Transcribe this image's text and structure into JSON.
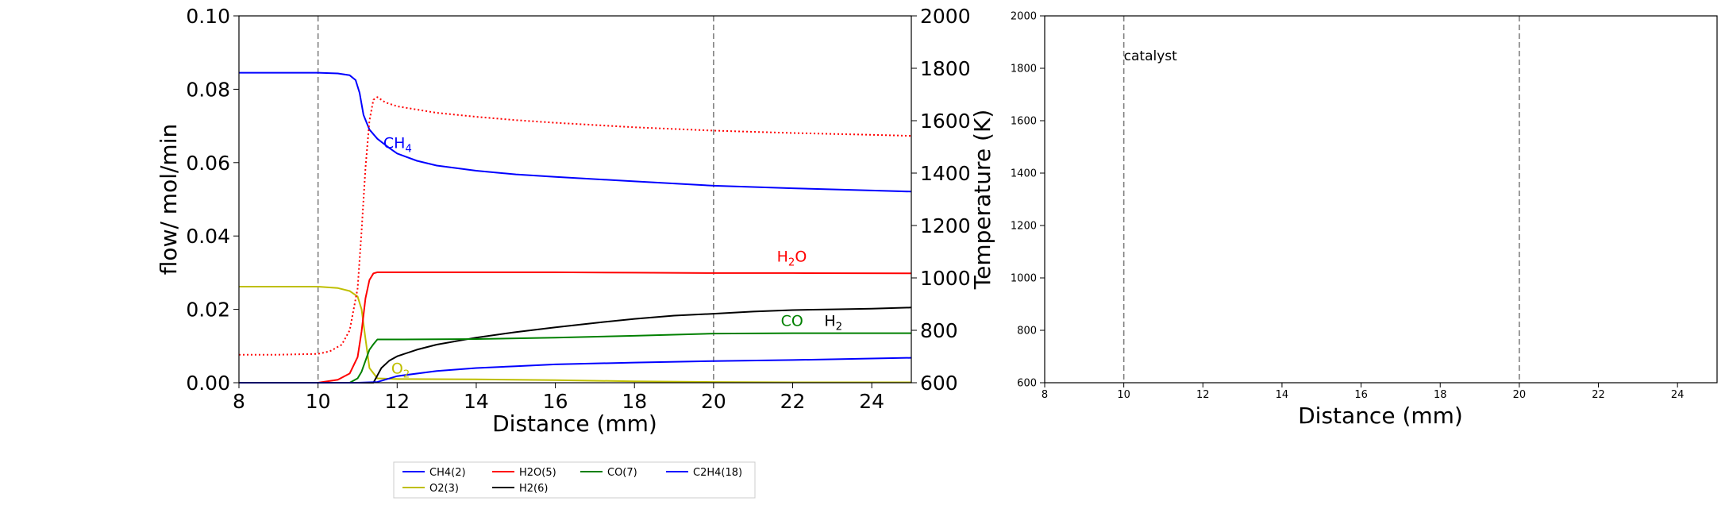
{
  "chart_data": [
    {
      "type": "line",
      "xlabel": "Distance (mm)",
      "ylabel": "flow/ mol/min",
      "y2label": "Temperature (K)",
      "xlim": [
        8,
        25
      ],
      "ylim": [
        0,
        0.1
      ],
      "y2lim": [
        600,
        2000
      ],
      "xticks": [
        "8",
        "10",
        "12",
        "14",
        "16",
        "18",
        "20",
        "22",
        "24"
      ],
      "yticks": [
        "0.00",
        "0.02",
        "0.04",
        "0.06",
        "0.08",
        "0.10"
      ],
      "y2ticks": [
        "600",
        "800",
        "1000",
        "1200",
        "1400",
        "1600",
        "1800",
        "2000"
      ],
      "vlines": [
        10,
        20
      ],
      "grid": false,
      "series": [
        {
          "name": "CH4(2)",
          "color": "#0000ff",
          "style": "solid",
          "x": [
            8,
            10,
            10.5,
            10.8,
            10.95,
            11.05,
            11.15,
            11.3,
            11.5,
            11.8,
            12,
            12.5,
            13,
            14,
            15,
            16,
            18,
            20,
            22,
            24,
            25
          ],
          "y": [
            0.0845,
            0.0845,
            0.0843,
            0.0838,
            0.0825,
            0.079,
            0.073,
            0.069,
            0.0665,
            0.064,
            0.0625,
            0.0605,
            0.0592,
            0.0578,
            0.0568,
            0.0561,
            0.0549,
            0.0537,
            0.053,
            0.0524,
            0.0521
          ]
        },
        {
          "name": "O2(3)",
          "color": "#bfbf00",
          "style": "solid",
          "x": [
            8,
            10,
            10.5,
            10.8,
            11,
            11.1,
            11.2,
            11.3,
            11.5,
            12,
            14,
            16,
            18,
            20,
            22,
            25
          ],
          "y": [
            0.0262,
            0.0262,
            0.0258,
            0.025,
            0.0235,
            0.02,
            0.012,
            0.004,
            0.0012,
            0.001,
            0.0009,
            0.0007,
            0.0004,
            0.0002,
            0.0001,
            0.0001
          ]
        },
        {
          "name": "H2O(5)",
          "color": "#ff0000",
          "style": "solid",
          "x": [
            8,
            10,
            10.5,
            10.8,
            11,
            11.1,
            11.2,
            11.3,
            11.4,
            11.5,
            12,
            14,
            16,
            18,
            20,
            22,
            25
          ],
          "y": [
            0.0,
            0.0,
            0.0008,
            0.0025,
            0.007,
            0.014,
            0.023,
            0.028,
            0.0298,
            0.0301,
            0.0301,
            0.0301,
            0.0301,
            0.03,
            0.0299,
            0.0299,
            0.0298
          ]
        },
        {
          "name": "H2(6)",
          "color": "#000000",
          "style": "solid",
          "x": [
            8,
            11.4,
            11.5,
            11.6,
            11.8,
            12,
            12.5,
            13,
            14,
            15,
            16,
            17,
            18,
            19,
            20,
            21,
            22,
            23,
            24,
            25
          ],
          "y": [
            0.0,
            0.0,
            0.002,
            0.004,
            0.006,
            0.0072,
            0.009,
            0.0104,
            0.0123,
            0.0138,
            0.0151,
            0.0163,
            0.0174,
            0.0183,
            0.0188,
            0.0194,
            0.0198,
            0.02,
            0.0202,
            0.0205
          ]
        },
        {
          "name": "CO(7)",
          "color": "#008000",
          "style": "solid",
          "x": [
            8,
            10.8,
            11,
            11.1,
            11.2,
            11.3,
            11.4,
            11.5,
            12,
            14,
            16,
            18,
            20,
            22,
            25
          ],
          "y": [
            0.0,
            0.0,
            0.0012,
            0.003,
            0.006,
            0.009,
            0.0105,
            0.0118,
            0.0118,
            0.0119,
            0.0123,
            0.0128,
            0.0134,
            0.0135,
            0.0135
          ]
        },
        {
          "name": "C2H4(18)",
          "color": "#0000ff",
          "style": "solid",
          "x": [
            8,
            11,
            11.5,
            12,
            13,
            14,
            15,
            16,
            18,
            20,
            22,
            24,
            25
          ],
          "y": [
            0.0,
            0.0,
            0.0002,
            0.0018,
            0.0032,
            0.004,
            0.0045,
            0.005,
            0.0055,
            0.0059,
            0.0062,
            0.0066,
            0.0068
          ]
        },
        {
          "name": "",
          "axis": "right",
          "color": "#ff0000",
          "style": "dotted",
          "x": [
            8,
            9,
            10,
            10.3,
            10.6,
            10.8,
            11,
            11.1,
            11.2,
            11.3,
            11.4,
            11.5,
            11.7,
            12,
            13,
            14,
            15,
            16,
            18,
            20,
            22,
            24,
            25
          ],
          "y": [
            707,
            707,
            710,
            720,
            745,
            800,
            960,
            1180,
            1420,
            1600,
            1680,
            1690,
            1670,
            1655,
            1630,
            1615,
            1602,
            1592,
            1575,
            1562,
            1553,
            1546,
            1542
          ]
        }
      ],
      "annotations": [
        {
          "text": "CH",
          "sub": "4",
          "x": 11.65,
          "y": 0.064,
          "color": "#0000ff"
        },
        {
          "text": "H",
          "sub": "2",
          "after": "O",
          "x": 21.6,
          "y": 0.033,
          "color": "#ff0000"
        },
        {
          "text": "CO",
          "x": 21.7,
          "y": 0.0155,
          "color": "#008000"
        },
        {
          "text": "H",
          "sub": "2",
          "x": 22.8,
          "y": 0.0155,
          "color": "#000000"
        },
        {
          "text": "O",
          "sub": "2",
          "x": 11.85,
          "y": 0.0025,
          "color": "#bfbf00"
        }
      ]
    },
    {
      "type": "line",
      "xlabel": "Distance (mm)",
      "ylabel": "",
      "xlim": [
        8,
        25
      ],
      "ylim": [
        600,
        2000
      ],
      "xticks": [
        "8",
        "10",
        "12",
        "14",
        "16",
        "18",
        "20",
        "22",
        "24"
      ],
      "yticks": [
        "600",
        "800",
        "1000",
        "1200",
        "1400",
        "1600",
        "1800",
        "2000"
      ],
      "vlines": [
        10,
        20
      ],
      "grid": false,
      "series": [],
      "annotations": [
        {
          "text": "catalyst",
          "x": 10,
          "y": 1830,
          "color": "#000000"
        }
      ]
    }
  ],
  "legend": {
    "placement": "bottom-center",
    "entries": [
      {
        "label": "CH4(2)",
        "color": "#0000ff"
      },
      {
        "label": "H2O(5)",
        "color": "#ff0000"
      },
      {
        "label": "CO(7)",
        "color": "#008000"
      },
      {
        "label": "C2H4(18)",
        "color": "#0000ff"
      },
      {
        "label": "O2(3)",
        "color": "#bfbf00"
      },
      {
        "label": "H2(6)",
        "color": "#000000"
      }
    ]
  }
}
